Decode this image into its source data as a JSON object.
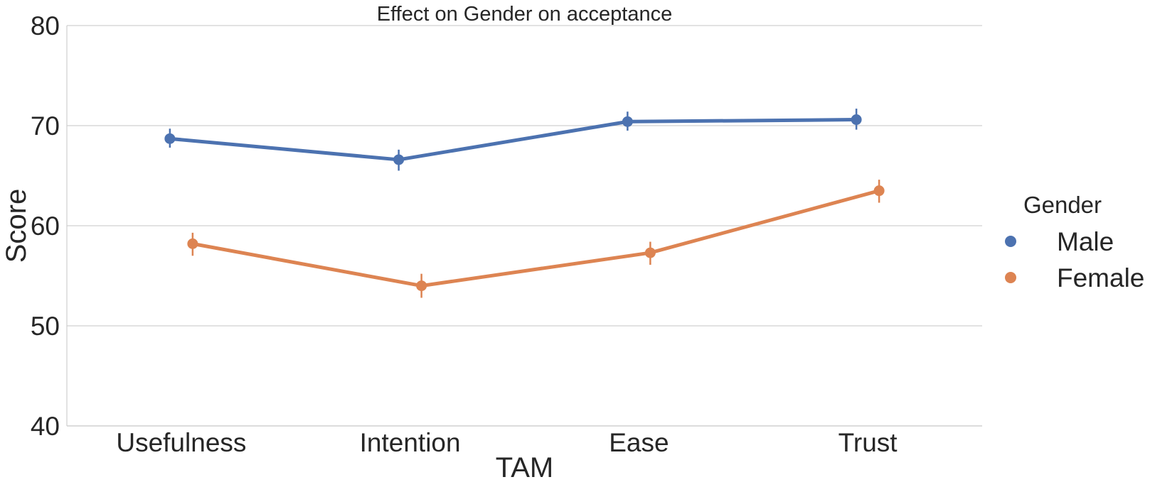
{
  "chart_data": {
    "type": "line",
    "title": "Effect on Gender on acceptance",
    "xlabel": "TAM",
    "ylabel": "Score",
    "categories": [
      "Usefulness",
      "Intention",
      "Ease",
      "Trust"
    ],
    "ylim": [
      40,
      80
    ],
    "yticks": [
      "40",
      "50",
      "60",
      "70",
      "80"
    ],
    "grid": true,
    "legend": {
      "title": "Gender",
      "position": "right"
    },
    "series": [
      {
        "name": "Male",
        "color": "#4c72b0",
        "values": [
          68.7,
          66.6,
          70.4,
          70.6
        ],
        "error": [
          [
            67.8,
            69.7
          ],
          [
            65.5,
            67.6
          ],
          [
            69.5,
            71.4
          ],
          [
            69.6,
            71.7
          ]
        ]
      },
      {
        "name": "Female",
        "color": "#dd8452",
        "values": [
          58.2,
          54.0,
          57.3,
          63.5
        ],
        "error": [
          [
            57.0,
            59.3
          ],
          [
            52.8,
            55.2
          ],
          [
            56.1,
            58.4
          ],
          [
            62.3,
            64.6
          ]
        ]
      }
    ]
  }
}
